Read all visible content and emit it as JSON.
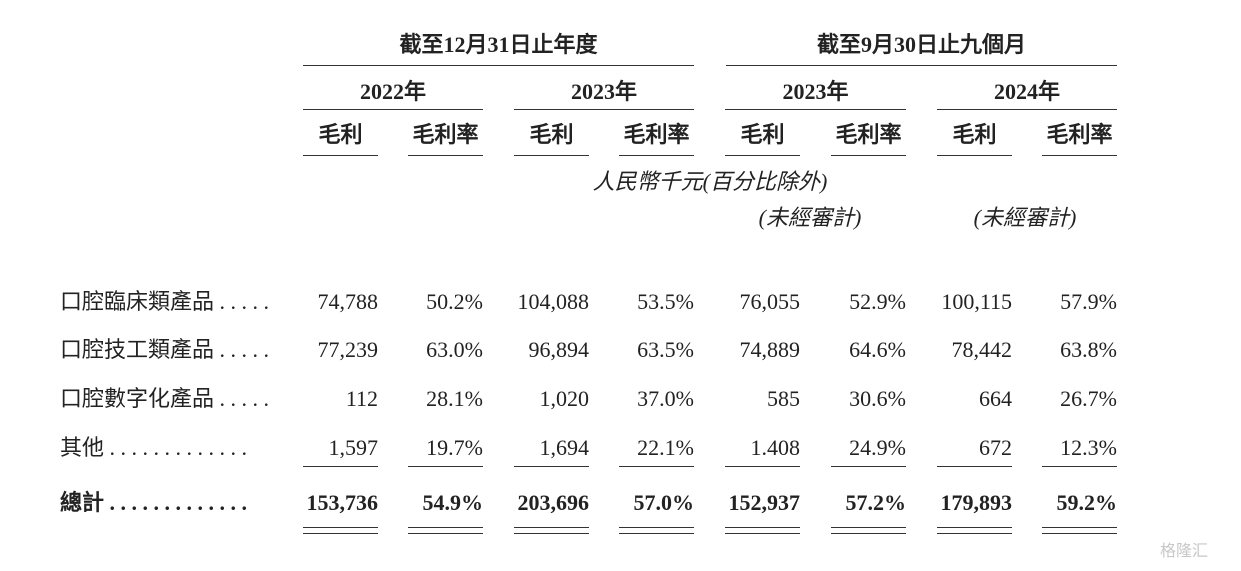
{
  "header": {
    "groups": [
      {
        "title": "截至12月31日止年度",
        "years": [
          "2022年",
          "2023年"
        ]
      },
      {
        "title": "截至9月30日止九個月",
        "years": [
          "2023年",
          "2024年"
        ]
      }
    ],
    "columns": [
      "毛利",
      "毛利率",
      "毛利",
      "毛利率",
      "毛利",
      "毛利率",
      "毛利",
      "毛利率"
    ],
    "unit": "人民幣千元(百分比除外)",
    "unaudited": [
      "(未經審計)",
      "(未經審計)"
    ]
  },
  "table": {
    "rows": [
      {
        "label": "口腔臨床類產品 . . . . .",
        "values": [
          "74,788",
          "50.2%",
          "104,088",
          "53.5%",
          "76,055",
          "52.9%",
          "100,115",
          "57.9%"
        ]
      },
      {
        "label": "口腔技工類產品 . . . . .",
        "values": [
          "77,239",
          "63.0%",
          "96,894",
          "63.5%",
          "74,889",
          "64.6%",
          "78,442",
          "63.8%"
        ]
      },
      {
        "label": "口腔數字化產品 . . . . .",
        "values": [
          "112",
          "28.1%",
          "1,020",
          "37.0%",
          "585",
          "30.6%",
          "664",
          "26.7%"
        ]
      },
      {
        "label": "其他 . . . . . . . . . . . . .",
        "values": [
          "1,597",
          "19.7%",
          "1,694",
          "22.1%",
          "1.408",
          "24.9%",
          "672",
          "12.3%"
        ]
      }
    ],
    "total": {
      "label": "總計 . . . . . . . . . . . . .",
      "values": [
        "153,736",
        "54.9%",
        "203,696",
        "57.0%",
        "152,937",
        "57.2%",
        "179,893",
        "59.2%"
      ]
    }
  },
  "watermark": "格隆汇"
}
